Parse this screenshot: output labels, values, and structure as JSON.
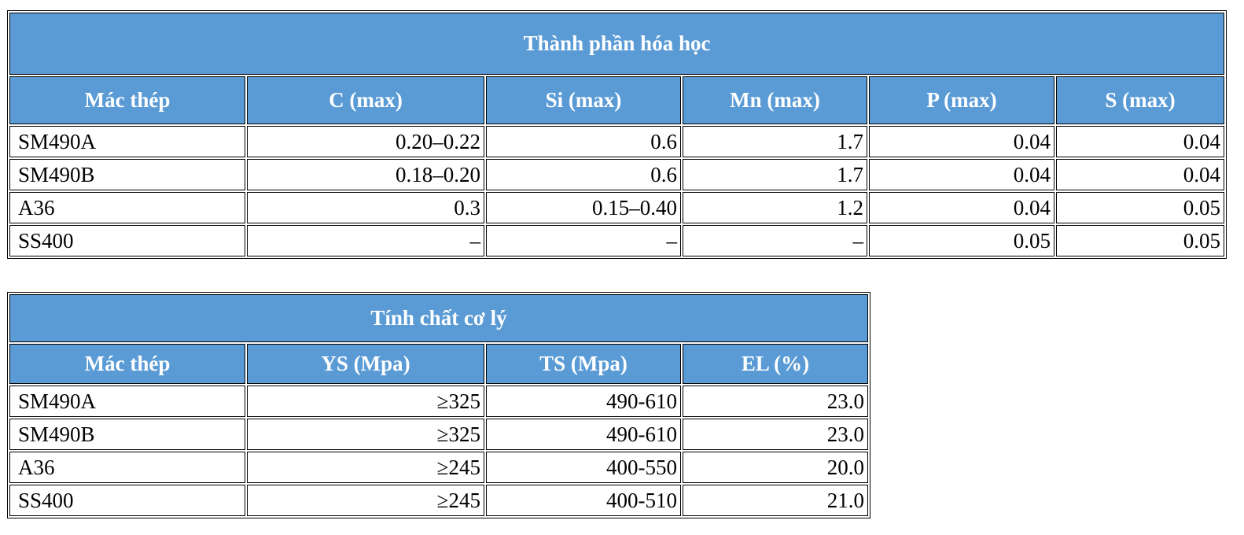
{
  "chemical": {
    "title": "Thành phần hóa học",
    "headers": [
      "Mác thép",
      "C (max)",
      "Si (max)",
      "Mn (max)",
      "P (max)",
      "S (max)"
    ],
    "rows": [
      [
        "SM490A",
        "0.20–0.22",
        "0.6",
        "1.7",
        "0.04",
        "0.04"
      ],
      [
        "SM490B",
        "0.18–0.20",
        "0.6",
        "1.7",
        "0.04",
        "0.04"
      ],
      [
        "A36",
        "0.3",
        "0.15–0.40",
        "1.2",
        "0.04",
        "0.05"
      ],
      [
        "SS400",
        "–",
        "–",
        "–",
        "0.05",
        "0.05"
      ]
    ]
  },
  "mechanical": {
    "title": "Tính chất cơ lý",
    "headers": [
      "Mác thép",
      "YS (Mpa)",
      "TS (Mpa)",
      "EL (%)"
    ],
    "rows": [
      [
        "SM490A",
        "≥325",
        "490-610",
        "23.0"
      ],
      [
        "SM490B",
        "≥325",
        "490-610",
        "23.0"
      ],
      [
        "A36",
        "≥245",
        "400-550",
        "20.0"
      ],
      [
        "SS400",
        "≥245",
        "400-510",
        "21.0"
      ]
    ]
  },
  "colors": {
    "header_bg": "#5b9bd5",
    "header_text": "#ffffff",
    "border": "#000000"
  }
}
